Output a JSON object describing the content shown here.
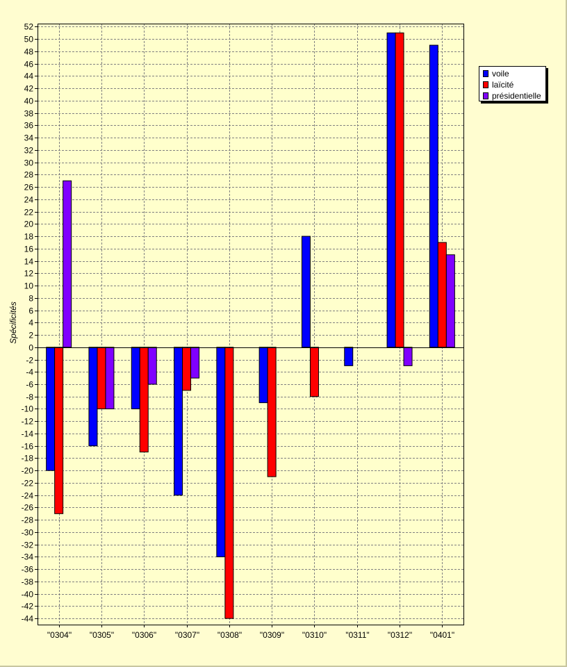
{
  "chart_data": {
    "type": "bar",
    "ylabel": "Spécificités",
    "xlabel": "",
    "ylim": [
      -45,
      52.5
    ],
    "ytick_step": 2,
    "ytick_min": -44,
    "ytick_max": 52,
    "grid": true,
    "legend_position": "top-right",
    "categories": [
      "\"0304\"",
      "\"0305\"",
      "\"0306\"",
      "\"0307\"",
      "\"0308\"",
      "\"0309\"",
      "\"0310\"",
      "\"0311\"",
      "\"0312\"",
      "\"0401\""
    ],
    "series": [
      {
        "name": "voile",
        "color": "#0000ff",
        "values": [
          -20,
          -16,
          -10,
          -24,
          -34,
          -9,
          18,
          -3,
          51,
          49
        ]
      },
      {
        "name": "laïcité",
        "color": "#ff0000",
        "values": [
          -27,
          -10,
          -17,
          -7,
          -44,
          -21,
          -8,
          0,
          51,
          17
        ]
      },
      {
        "name": "présidentielle",
        "color": "#8000ff",
        "values": [
          27,
          -10,
          -6,
          -5,
          0,
          0,
          0,
          0,
          -3,
          15
        ]
      }
    ]
  },
  "colors": {
    "page_background": "#fffdd0",
    "plot_background": "#ffffcc",
    "grid": "#808080"
  }
}
